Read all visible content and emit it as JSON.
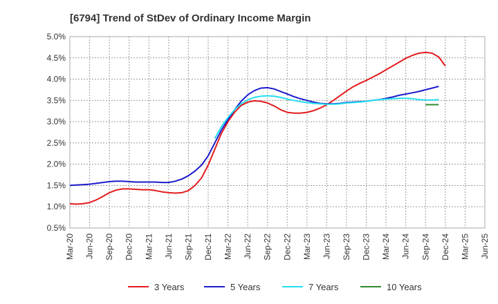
{
  "chart_data": {
    "type": "line",
    "title": "[6794]  Trend of StDev of Ordinary Income Margin",
    "xlabel": "",
    "ylabel": "",
    "x_ticks": [
      "Mar-20",
      "Jun-20",
      "Sep-20",
      "Dec-20",
      "Mar-21",
      "Jun-21",
      "Sep-21",
      "Dec-21",
      "Mar-22",
      "Jun-22",
      "Sep-22",
      "Dec-22",
      "Mar-23",
      "Jun-23",
      "Sep-23",
      "Dec-23",
      "Mar-24",
      "Jun-24",
      "Sep-24",
      "Dec-24",
      "Mar-25",
      "Jun-25"
    ],
    "y_ticks": [
      "0.5%",
      "1.0%",
      "1.5%",
      "2.0%",
      "2.5%",
      "3.0%",
      "3.5%",
      "4.0%",
      "4.5%",
      "5.0%"
    ],
    "ylim": [
      0.5,
      5.0
    ],
    "grid": true,
    "legend_position": "bottom",
    "series": [
      {
        "name": "3 Years",
        "color": "#e31a1c",
        "values": [
          [
            "Mar-20",
            1.07
          ],
          [
            "Apr-20",
            1.06
          ],
          [
            "May-20",
            1.07
          ],
          [
            "Jun-20",
            1.1
          ],
          [
            "Jul-20",
            1.16
          ],
          [
            "Aug-20",
            1.24
          ],
          [
            "Sep-20",
            1.33
          ],
          [
            "Oct-20",
            1.39
          ],
          [
            "Nov-20",
            1.42
          ],
          [
            "Dec-20",
            1.42
          ],
          [
            "Jan-21",
            1.41
          ],
          [
            "Feb-21",
            1.4
          ],
          [
            "Mar-21",
            1.4
          ],
          [
            "Apr-21",
            1.38
          ],
          [
            "May-21",
            1.35
          ],
          [
            "Jun-21",
            1.33
          ],
          [
            "Jul-21",
            1.32
          ],
          [
            "Aug-21",
            1.33
          ],
          [
            "Sep-21",
            1.38
          ],
          [
            "Oct-21",
            1.5
          ],
          [
            "Nov-21",
            1.68
          ],
          [
            "Dec-21",
            1.98
          ],
          [
            "Jan-22",
            2.35
          ],
          [
            "Feb-22",
            2.72
          ],
          [
            "Mar-22",
            3.0
          ],
          [
            "Apr-22",
            3.22
          ],
          [
            "May-22",
            3.38
          ],
          [
            "Jun-22",
            3.46
          ],
          [
            "Jul-22",
            3.49
          ],
          [
            "Aug-22",
            3.48
          ],
          [
            "Sep-22",
            3.44
          ],
          [
            "Oct-22",
            3.37
          ],
          [
            "Nov-22",
            3.28
          ],
          [
            "Dec-22",
            3.22
          ],
          [
            "Jan-23",
            3.2
          ],
          [
            "Feb-23",
            3.2
          ],
          [
            "Mar-23",
            3.22
          ],
          [
            "Apr-23",
            3.26
          ],
          [
            "May-23",
            3.32
          ],
          [
            "Jun-23",
            3.4
          ],
          [
            "Jul-23",
            3.5
          ],
          [
            "Aug-23",
            3.61
          ],
          [
            "Sep-23",
            3.72
          ],
          [
            "Oct-23",
            3.82
          ],
          [
            "Nov-23",
            3.9
          ],
          [
            "Dec-23",
            3.97
          ],
          [
            "Jan-24",
            4.05
          ],
          [
            "Feb-24",
            4.13
          ],
          [
            "Mar-24",
            4.22
          ],
          [
            "Apr-24",
            4.31
          ],
          [
            "May-24",
            4.4
          ],
          [
            "Jun-24",
            4.49
          ],
          [
            "Jul-24",
            4.56
          ],
          [
            "Aug-24",
            4.61
          ],
          [
            "Sep-24",
            4.63
          ],
          [
            "Oct-24",
            4.61
          ],
          [
            "Nov-24",
            4.52
          ],
          [
            "Dec-24",
            4.31
          ]
        ]
      },
      {
        "name": "5 Years",
        "color": "#1a1acc",
        "values": [
          [
            "Mar-20",
            1.5
          ],
          [
            "Apr-20",
            1.51
          ],
          [
            "May-20",
            1.52
          ],
          [
            "Jun-20",
            1.53
          ],
          [
            "Jul-20",
            1.55
          ],
          [
            "Aug-20",
            1.57
          ],
          [
            "Sep-20",
            1.59
          ],
          [
            "Oct-20",
            1.6
          ],
          [
            "Nov-20",
            1.6
          ],
          [
            "Dec-20",
            1.59
          ],
          [
            "Jan-21",
            1.58
          ],
          [
            "Feb-21",
            1.58
          ],
          [
            "Mar-21",
            1.58
          ],
          [
            "Apr-21",
            1.58
          ],
          [
            "May-21",
            1.57
          ],
          [
            "Jun-21",
            1.57
          ],
          [
            "Jul-21",
            1.6
          ],
          [
            "Aug-21",
            1.65
          ],
          [
            "Sep-21",
            1.73
          ],
          [
            "Oct-21",
            1.84
          ],
          [
            "Nov-21",
            1.98
          ],
          [
            "Dec-21",
            2.2
          ],
          [
            "Jan-22",
            2.5
          ],
          [
            "Feb-22",
            2.8
          ],
          [
            "Mar-22",
            3.05
          ],
          [
            "Apr-22",
            3.28
          ],
          [
            "May-22",
            3.48
          ],
          [
            "Jun-22",
            3.63
          ],
          [
            "Jul-22",
            3.73
          ],
          [
            "Aug-22",
            3.79
          ],
          [
            "Sep-22",
            3.8
          ],
          [
            "Oct-22",
            3.77
          ],
          [
            "Nov-22",
            3.71
          ],
          [
            "Dec-22",
            3.65
          ],
          [
            "Jan-23",
            3.59
          ],
          [
            "Feb-23",
            3.54
          ],
          [
            "Mar-23",
            3.5
          ],
          [
            "Apr-23",
            3.46
          ],
          [
            "May-23",
            3.43
          ],
          [
            "Jun-23",
            3.42
          ],
          [
            "Jul-23",
            3.42
          ],
          [
            "Aug-23",
            3.43
          ],
          [
            "Sep-23",
            3.45
          ],
          [
            "Oct-23",
            3.46
          ],
          [
            "Nov-23",
            3.47
          ],
          [
            "Dec-23",
            3.48
          ],
          [
            "Jan-24",
            3.5
          ],
          [
            "Feb-24",
            3.52
          ],
          [
            "Mar-24",
            3.55
          ],
          [
            "Apr-24",
            3.58
          ],
          [
            "May-24",
            3.62
          ],
          [
            "Jun-24",
            3.65
          ],
          [
            "Jul-24",
            3.68
          ],
          [
            "Aug-24",
            3.71
          ],
          [
            "Sep-24",
            3.75
          ],
          [
            "Oct-24",
            3.79
          ],
          [
            "Nov-24",
            3.83
          ]
        ]
      },
      {
        "name": "7 Years",
        "color": "#22ddee",
        "values": [
          [
            "Jan-22",
            2.6
          ],
          [
            "Feb-22",
            2.88
          ],
          [
            "Mar-22",
            3.1
          ],
          [
            "Apr-22",
            3.28
          ],
          [
            "May-22",
            3.42
          ],
          [
            "Jun-22",
            3.51
          ],
          [
            "Jul-22",
            3.57
          ],
          [
            "Aug-22",
            3.6
          ],
          [
            "Sep-22",
            3.61
          ],
          [
            "Oct-22",
            3.6
          ],
          [
            "Nov-22",
            3.57
          ],
          [
            "Dec-22",
            3.53
          ],
          [
            "Jan-23",
            3.5
          ],
          [
            "Feb-23",
            3.47
          ],
          [
            "Mar-23",
            3.45
          ],
          [
            "Apr-23",
            3.43
          ],
          [
            "May-23",
            3.42
          ],
          [
            "Jun-23",
            3.41
          ],
          [
            "Jul-23",
            3.41
          ],
          [
            "Aug-23",
            3.42
          ],
          [
            "Sep-23",
            3.44
          ],
          [
            "Oct-23",
            3.45
          ],
          [
            "Nov-23",
            3.46
          ],
          [
            "Dec-23",
            3.48
          ],
          [
            "Jan-24",
            3.5
          ],
          [
            "Feb-24",
            3.52
          ],
          [
            "Mar-24",
            3.53
          ],
          [
            "Apr-24",
            3.54
          ],
          [
            "May-24",
            3.55
          ],
          [
            "Jun-24",
            3.55
          ],
          [
            "Jul-24",
            3.54
          ],
          [
            "Aug-24",
            3.52
          ],
          [
            "Sep-24",
            3.51
          ],
          [
            "Oct-24",
            3.51
          ],
          [
            "Nov-24",
            3.52
          ]
        ]
      },
      {
        "name": "10 Years",
        "color": "#2e8b2e",
        "values": [
          [
            "Sep-24",
            3.4
          ],
          [
            "Oct-24",
            3.4
          ],
          [
            "Nov-24",
            3.4
          ]
        ]
      }
    ]
  }
}
